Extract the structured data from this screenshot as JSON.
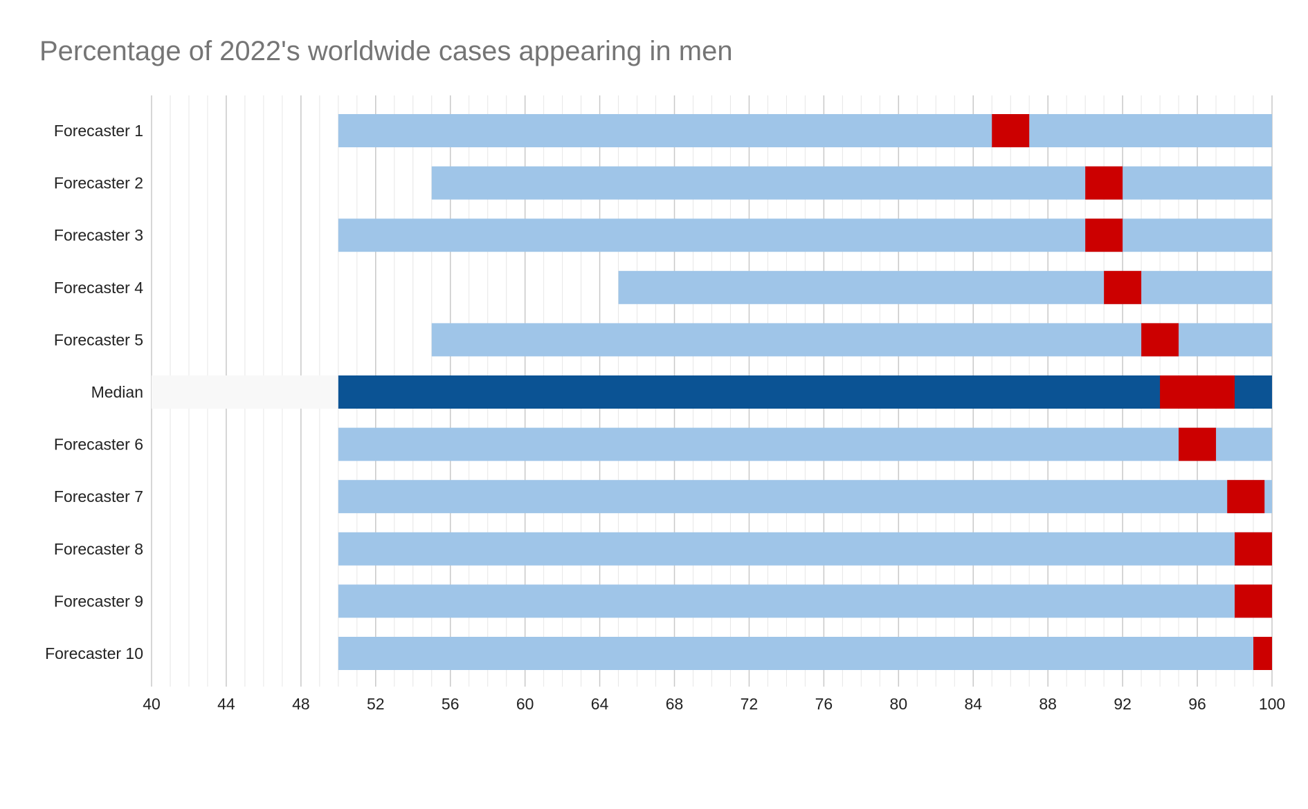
{
  "chart_data": {
    "type": "bar",
    "orientation": "horizontal",
    "title": "Percentage of 2022's worldwide cases appearing in men",
    "xlabel": "",
    "ylabel": "",
    "xlim": [
      40,
      100
    ],
    "x_ticks": [
      "40",
      "44",
      "48",
      "52",
      "56",
      "60",
      "64",
      "68",
      "72",
      "76",
      "80",
      "84",
      "88",
      "92",
      "96",
      "100"
    ],
    "grid": "vertical major and minor gridlines",
    "legend": "none",
    "colors": {
      "interval": "#9fc5e8",
      "median_interval": "#0b5394",
      "point_estimate": "#cc0000",
      "median_left_background": "#f8f8f8",
      "major_grid": "#c8c8c8",
      "minor_grid": "#e6e6e6"
    },
    "categories": [
      "Forecaster 1",
      "Forecaster 2",
      "Forecaster 3",
      "Forecaster 4",
      "Forecaster 5",
      "Median",
      "Forecaster 6",
      "Forecaster 7",
      "Forecaster 8",
      "Forecaster 9",
      "Forecaster 10"
    ],
    "series": [
      {
        "name": "",
        "role": "interval_low",
        "values": [
          50,
          55,
          50,
          65,
          55,
          50,
          50,
          50,
          50,
          50,
          50
        ]
      },
      {
        "name": "",
        "role": "estimate_low",
        "values": [
          85,
          90,
          90,
          91,
          93,
          94,
          95,
          97.6,
          98,
          98,
          99
        ]
      },
      {
        "name": "",
        "role": "estimate_high",
        "values": [
          87,
          92,
          92,
          93,
          95,
          98,
          97,
          99.6,
          100,
          100,
          100
        ]
      },
      {
        "name": "",
        "role": "interval_high",
        "values": [
          100,
          100,
          100,
          100,
          100,
          100,
          100,
          100,
          100,
          100,
          100
        ]
      }
    ]
  }
}
